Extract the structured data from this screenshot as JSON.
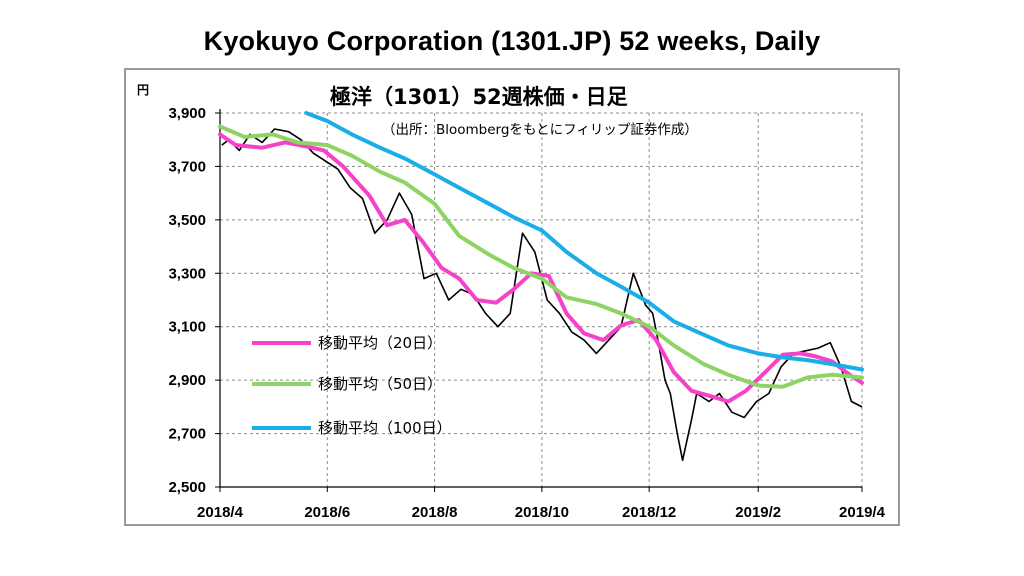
{
  "page_title": "Kyokuyo Corporation (1301.JP) 52 weeks, Daily",
  "chart_data": {
    "type": "line",
    "title": "極洋（1301）52週株価・日足",
    "subtitle": "（出所：Bloombergをもとにフィリップ証券作成）",
    "ylabel": "円",
    "ylim": [
      2500,
      3900
    ],
    "yticks": [
      2500,
      2700,
      2900,
      3100,
      3300,
      3500,
      3700,
      3900
    ],
    "ytick_labels": [
      "2,500",
      "2,700",
      "2,900",
      "3,100",
      "3,300",
      "3,500",
      "3,700",
      "3,900"
    ],
    "xlim": [
      "2018-04-01",
      "2019-04-01"
    ],
    "xticks": [
      "2018-04-01",
      "2018-06-01",
      "2018-08-01",
      "2018-10-01",
      "2018-12-01",
      "2019-02-01",
      "2019-04-01"
    ],
    "xtick_labels": [
      "2018/4",
      "2018/6",
      "2018/8",
      "2018/10",
      "2018/12",
      "2019/2",
      "2019/4"
    ],
    "grid": true,
    "legend_position": "bottom-left",
    "price": {
      "x": [
        "2018-04-02",
        "2018-04-06",
        "2018-04-12",
        "2018-04-18",
        "2018-04-25",
        "2018-05-02",
        "2018-05-10",
        "2018-05-17",
        "2018-05-24",
        "2018-05-31",
        "2018-06-07",
        "2018-06-14",
        "2018-06-21",
        "2018-06-28",
        "2018-07-05",
        "2018-07-12",
        "2018-07-19",
        "2018-07-26",
        "2018-08-02",
        "2018-08-09",
        "2018-08-16",
        "2018-08-23",
        "2018-08-30",
        "2018-09-06",
        "2018-09-13",
        "2018-09-20",
        "2018-09-27",
        "2018-10-04",
        "2018-10-11",
        "2018-10-18",
        "2018-10-25",
        "2018-11-01",
        "2018-11-08",
        "2018-11-15",
        "2018-11-22",
        "2018-11-29",
        "2018-12-03",
        "2018-12-06",
        "2018-12-10",
        "2018-12-13",
        "2018-12-17",
        "2018-12-20",
        "2018-12-25",
        "2018-12-28",
        "2019-01-04",
        "2019-01-10",
        "2019-01-17",
        "2019-01-24",
        "2019-01-31",
        "2019-02-07",
        "2019-02-14",
        "2019-02-21",
        "2019-02-28",
        "2019-03-07",
        "2019-03-14",
        "2019-03-20",
        "2019-03-26",
        "2019-04-01"
      ],
      "values": [
        3780,
        3800,
        3760,
        3820,
        3790,
        3840,
        3830,
        3800,
        3750,
        3720,
        3690,
        3620,
        3580,
        3450,
        3500,
        3600,
        3520,
        3280,
        3300,
        3200,
        3240,
        3220,
        3150,
        3100,
        3150,
        3450,
        3380,
        3200,
        3150,
        3080,
        3050,
        3000,
        3050,
        3100,
        3300,
        3180,
        3150,
        3050,
        2900,
        2850,
        2700,
        2600,
        2750,
        2850,
        2820,
        2850,
        2780,
        2760,
        2820,
        2850,
        2950,
        3000,
        3010,
        3020,
        3040,
        2950,
        2820,
        2800
      ],
      "color": "#000000"
    },
    "series": [
      {
        "name": "移動平均（20日）",
        "color": "#f542c8",
        "x": [
          "2018-04-01",
          "2018-04-10",
          "2018-04-25",
          "2018-05-08",
          "2018-05-20",
          "2018-05-30",
          "2018-06-10",
          "2018-06-25",
          "2018-07-05",
          "2018-07-15",
          "2018-07-25",
          "2018-08-05",
          "2018-08-15",
          "2018-08-25",
          "2018-09-05",
          "2018-09-15",
          "2018-09-25",
          "2018-10-05",
          "2018-10-15",
          "2018-10-25",
          "2018-11-05",
          "2018-11-15",
          "2018-11-25",
          "2018-12-05",
          "2018-12-15",
          "2018-12-25",
          "2019-01-05",
          "2019-01-15",
          "2019-01-25",
          "2019-02-05",
          "2019-02-15",
          "2019-02-25",
          "2019-03-05",
          "2019-03-15",
          "2019-03-25",
          "2019-04-01"
        ],
        "values": [
          3820,
          3780,
          3770,
          3790,
          3775,
          3760,
          3700,
          3590,
          3480,
          3500,
          3420,
          3320,
          3280,
          3200,
          3190,
          3240,
          3300,
          3290,
          3150,
          3075,
          3050,
          3105,
          3125,
          3050,
          2930,
          2860,
          2840,
          2820,
          2860,
          2930,
          2995,
          3000,
          2990,
          2970,
          2920,
          2890
        ]
      },
      {
        "name": "移動平均（50日）",
        "color": "#8ed463",
        "x": [
          "2018-04-01",
          "2018-04-15",
          "2018-05-01",
          "2018-05-15",
          "2018-06-01",
          "2018-06-15",
          "2018-07-01",
          "2018-07-15",
          "2018-08-01",
          "2018-08-15",
          "2018-09-01",
          "2018-09-15",
          "2018-10-01",
          "2018-10-15",
          "2018-11-01",
          "2018-11-15",
          "2018-12-01",
          "2018-12-15",
          "2019-01-01",
          "2019-01-15",
          "2019-02-01",
          "2019-02-15",
          "2019-03-01",
          "2019-03-15",
          "2019-04-01"
        ],
        "values": [
          3850,
          3810,
          3820,
          3790,
          3780,
          3740,
          3680,
          3640,
          3560,
          3440,
          3370,
          3320,
          3280,
          3210,
          3185,
          3150,
          3100,
          3030,
          2960,
          2920,
          2880,
          2875,
          2910,
          2920,
          2910
        ]
      },
      {
        "name": "移動平均（100日）",
        "color": "#1aaee8",
        "x": [
          "2018-05-20",
          "2018-06-01",
          "2018-06-15",
          "2018-07-01",
          "2018-07-15",
          "2018-08-01",
          "2018-08-15",
          "2018-09-01",
          "2018-09-15",
          "2018-10-01",
          "2018-10-15",
          "2018-11-01",
          "2018-11-15",
          "2018-12-01",
          "2018-12-15",
          "2019-01-01",
          "2019-01-15",
          "2019-02-01",
          "2019-02-15",
          "2019-03-01",
          "2019-03-15",
          "2019-04-01"
        ],
        "values": [
          3900,
          3870,
          3820,
          3770,
          3730,
          3670,
          3620,
          3560,
          3510,
          3460,
          3380,
          3300,
          3250,
          3190,
          3120,
          3070,
          3030,
          3000,
          2985,
          2975,
          2960,
          2940
        ]
      }
    ]
  }
}
